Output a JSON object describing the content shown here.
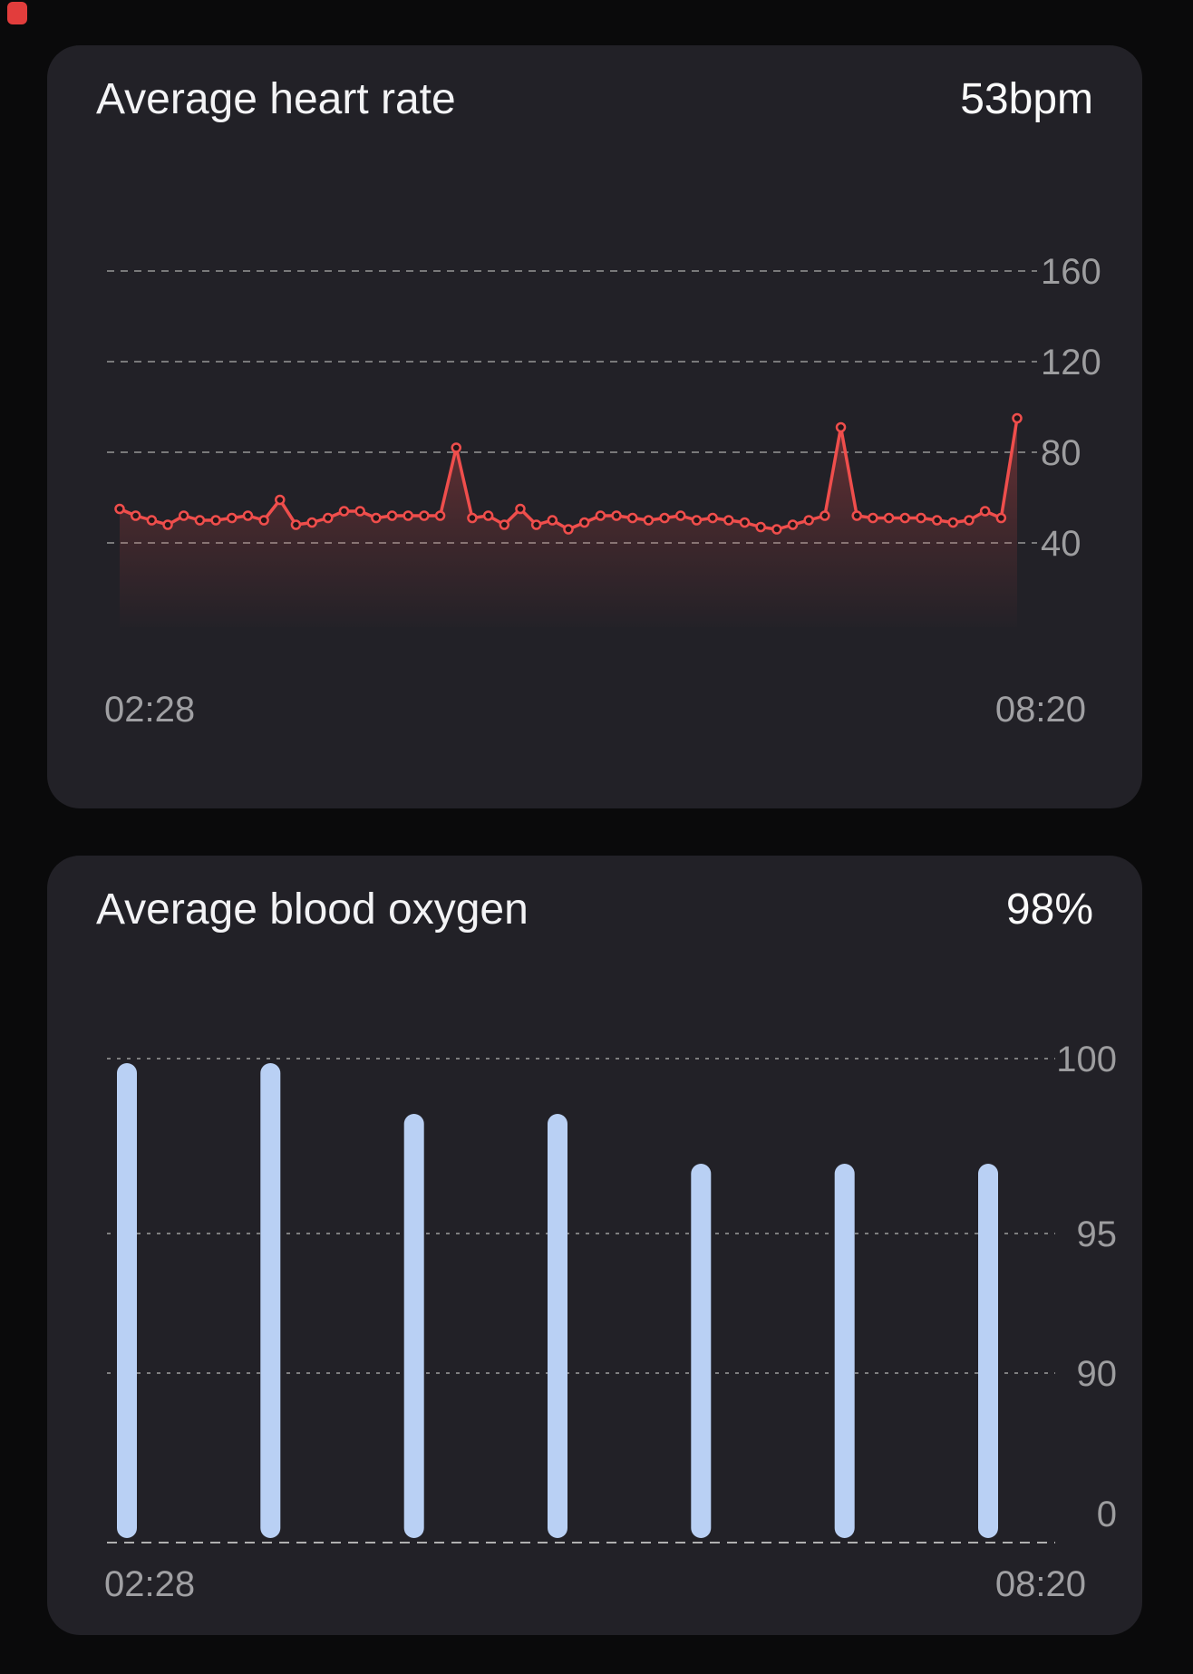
{
  "screen": {
    "background": "#0a0a0b",
    "card_background": "#222127",
    "recording_indicator_color": "#e23d3c"
  },
  "heart_rate_card": {
    "title": "Average heart rate",
    "value": "53bpm",
    "x_start_label": "02:28",
    "x_end_label": "08:20"
  },
  "blood_oxygen_card": {
    "title": "Average blood oxygen",
    "value": "98%",
    "x_start_label": "02:28",
    "x_end_label": "08:20"
  },
  "chart_data": [
    {
      "type": "line",
      "title": "Average heart rate",
      "unit": "bpm",
      "average_value": 53,
      "x_range": [
        "02:28",
        "08:20"
      ],
      "y_ticks": [
        160,
        120,
        80,
        40
      ],
      "ylim": [
        40,
        160
      ],
      "grid": "dashed-horizontal",
      "legend": "none",
      "line_color": "#ef4e4c",
      "marker": "hollow-circle",
      "fill": "red-gradient-fade",
      "values": [
        55,
        52,
        50,
        48,
        52,
        50,
        50,
        51,
        52,
        50,
        59,
        48,
        49,
        51,
        54,
        54,
        51,
        52,
        52,
        52,
        52,
        82,
        51,
        52,
        48,
        55,
        48,
        50,
        46,
        49,
        52,
        52,
        51,
        50,
        51,
        52,
        50,
        51,
        50,
        49,
        47,
        46,
        48,
        50,
        52,
        91,
        52,
        51,
        51,
        51,
        51,
        50,
        49,
        50,
        54,
        51,
        95
      ]
    },
    {
      "type": "bar",
      "title": "Average blood oxygen",
      "unit": "%",
      "average_value": 98,
      "x_range": [
        "02:28",
        "08:20"
      ],
      "y_ticks": [
        100,
        95,
        90,
        0
      ],
      "grid": "dashed-horizontal",
      "legend": "none",
      "bar_color": "#b9d0f4",
      "bar_shape": "rounded-capsule",
      "values": [
        100,
        100,
        98,
        98,
        97,
        97,
        97
      ]
    }
  ],
  "axis": {
    "tick_label_color": "#9d9d9f",
    "gridline_color": "#8f8f8f",
    "zero_line_color": "#c9c9c9"
  }
}
